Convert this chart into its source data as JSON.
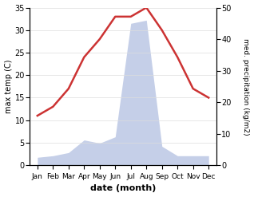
{
  "months": [
    "Jan",
    "Feb",
    "Mar",
    "Apr",
    "May",
    "Jun",
    "Jul",
    "Aug",
    "Sep",
    "Oct",
    "Nov",
    "Dec"
  ],
  "temperature": [
    11,
    13,
    17,
    24,
    28,
    33,
    33,
    35,
    30,
    24,
    17,
    15
  ],
  "precipitation": [
    2.5,
    3,
    4,
    8,
    7,
    9,
    45,
    46,
    6,
    3,
    3,
    3
  ],
  "temp_color": "#cc3333",
  "precip_fill_color": "#c5cfe8",
  "left_ylabel": "max temp (C)",
  "right_ylabel": "med. precipitation (kg/m2)",
  "xlabel": "date (month)",
  "temp_ylim": [
    0,
    35
  ],
  "precip_ylim": [
    0,
    50
  ],
  "temp_yticks": [
    0,
    5,
    10,
    15,
    20,
    25,
    30,
    35
  ],
  "precip_yticks": [
    0,
    10,
    20,
    30,
    40,
    50
  ],
  "bg_color": "#ffffff"
}
